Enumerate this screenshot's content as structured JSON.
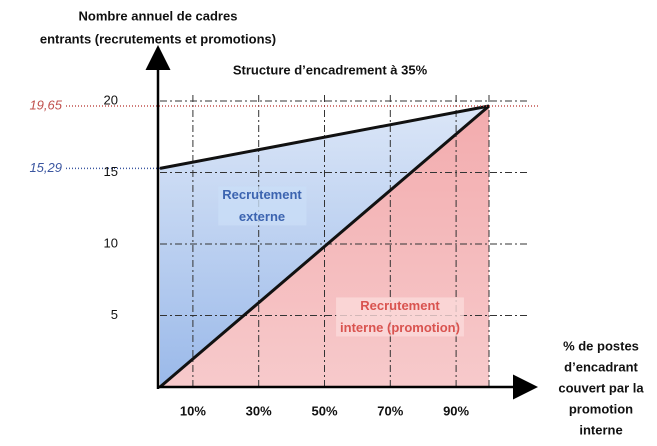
{
  "chart_data": {
    "type": "stacked_area",
    "title": "Structure d’encadrement à 35%",
    "ylabel": [
      "Nombre annuel de cadres",
      "entrants (recrutements et promotions)"
    ],
    "xlabel": [
      "% de postes",
      "d’encadrant",
      "couvert par la",
      "promotion",
      "interne"
    ],
    "x": [
      0,
      100
    ],
    "series": [
      {
        "name": "Recrutement interne (promotion)",
        "color": "#e8676b",
        "values": [
          0,
          19.65
        ]
      },
      {
        "name": "Recrutement externe",
        "color": "#6f9be0",
        "values": [
          15.29,
          0
        ]
      }
    ],
    "xlim": [
      0,
      100
    ],
    "xticks": [
      {
        "value": 10,
        "label": "10%"
      },
      {
        "value": 30,
        "label": "30%"
      },
      {
        "value": 50,
        "label": "50%"
      },
      {
        "value": 70,
        "label": "70%"
      },
      {
        "value": 90,
        "label": "90%"
      }
    ],
    "ylim": [
      0,
      20
    ],
    "yticks": [
      5,
      10,
      15,
      20
    ],
    "grid": true,
    "reference_lines": [
      {
        "value": 19.65,
        "label": "19,65",
        "color": "#c0504d"
      },
      {
        "value": 15.29,
        "label": "15,29",
        "color": "#3b56a0"
      }
    ]
  }
}
